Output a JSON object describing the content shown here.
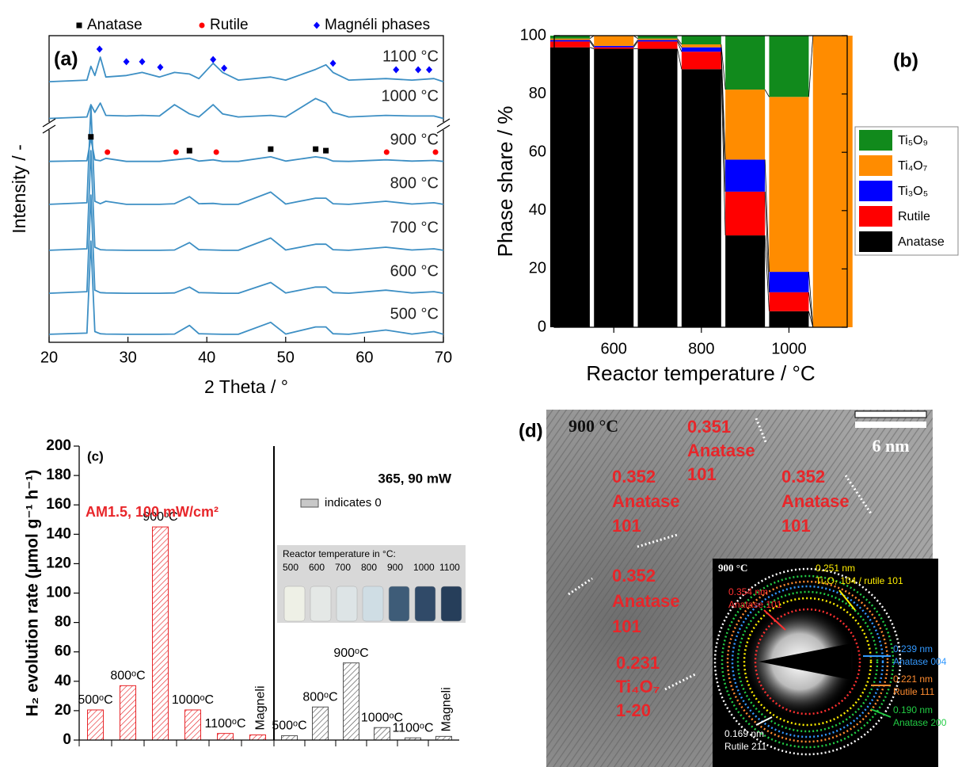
{
  "chart_data": [
    {
      "type": "line",
      "label": "(a)",
      "xlabel": "2 Theta / °",
      "ylabel": "Intensity / -",
      "xlim": [
        20,
        70
      ],
      "xticks": [
        20,
        30,
        40,
        50,
        60,
        70
      ],
      "ylim": [
        0,
        10
      ],
      "x": [
        20,
        24.8,
        25.3,
        25.8,
        26.5,
        27.2,
        29.8,
        31.8,
        34,
        35.9,
        37.8,
        39,
        40.8,
        42,
        44,
        48.1,
        50,
        53.8,
        55.1,
        56,
        58,
        62.7,
        66,
        68.8,
        70
      ],
      "series": [
        {
          "name": "500 °C",
          "color": "#3d8fc4",
          "values": [
            0.26,
            0.3,
            3.3,
            0.35,
            0.28,
            0.27,
            0.26,
            0.26,
            0.26,
            0.27,
            0.55,
            0.28,
            0.27,
            0.26,
            0.26,
            0.65,
            0.27,
            0.5,
            0.5,
            0.28,
            0.26,
            0.4,
            0.27,
            0.35,
            0.26
          ]
        },
        {
          "name": "600 °C",
          "color": "#3d8fc4",
          "values": [
            1.6,
            1.65,
            4.8,
            1.7,
            1.62,
            1.61,
            1.6,
            1.6,
            1.6,
            1.61,
            1.8,
            1.62,
            1.61,
            1.6,
            1.6,
            1.95,
            1.61,
            1.8,
            1.8,
            1.62,
            1.6,
            1.7,
            1.61,
            1.65,
            1.6
          ]
        },
        {
          "name": "700 °C",
          "color": "#3d8fc4",
          "values": [
            3.0,
            3.05,
            6.25,
            3.1,
            3.02,
            3.01,
            3.0,
            3.0,
            3.0,
            3.01,
            3.25,
            3.02,
            3.01,
            3.0,
            3.0,
            3.4,
            3.01,
            3.2,
            3.2,
            3.02,
            3.0,
            3.1,
            3.01,
            3.05,
            3.0
          ]
        },
        {
          "name": "800 °C",
          "color": "#3d8fc4",
          "values": [
            4.5,
            4.55,
            7.7,
            4.6,
            4.52,
            4.6,
            4.5,
            4.5,
            4.5,
            4.52,
            4.75,
            4.52,
            4.53,
            4.5,
            4.5,
            4.9,
            4.51,
            4.7,
            4.7,
            4.52,
            4.5,
            4.6,
            4.51,
            4.55,
            4.5
          ]
        },
        {
          "name": "900 °C",
          "color": "#3d8fc4",
          "values": [
            5.9,
            5.92,
            6.65,
            5.95,
            5.92,
            6.0,
            5.9,
            5.9,
            5.9,
            5.95,
            6.0,
            5.91,
            5.95,
            5.9,
            5.9,
            6.05,
            5.91,
            6.05,
            6.0,
            5.91,
            5.9,
            5.95,
            5.91,
            5.93,
            5.9
          ]
        },
        {
          "name": "1000 °C",
          "color": "#3d8fc4",
          "values": [
            7.3,
            7.35,
            7.75,
            7.5,
            7.8,
            7.4,
            7.38,
            7.4,
            7.38,
            7.75,
            7.45,
            7.35,
            7.75,
            7.45,
            7.35,
            7.4,
            7.35,
            7.95,
            7.8,
            7.5,
            7.35,
            7.4,
            7.38,
            7.38,
            7.3
          ]
        },
        {
          "name": "1100 °C",
          "color": "#3d8fc4",
          "values": [
            8.5,
            8.55,
            9.0,
            8.7,
            9.3,
            8.65,
            8.7,
            8.8,
            8.65,
            8.8,
            8.75,
            8.6,
            9.1,
            8.8,
            8.55,
            8.65,
            8.55,
            8.9,
            9.05,
            8.8,
            8.55,
            8.6,
            8.55,
            8.6,
            8.5
          ]
        }
      ],
      "markers": [
        {
          "name": "Anatase",
          "color": "#000000",
          "shape": "square",
          "x": [
            25.3,
            37.8,
            48.1,
            53.8,
            55.1
          ],
          "y": [
            6.7,
            6.25,
            6.3,
            6.3,
            6.25
          ]
        },
        {
          "name": "Rutile",
          "color": "#ff0000",
          "shape": "circle",
          "x": [
            27.4,
            36.1,
            41.2,
            62.8,
            69
          ],
          "y": [
            6.2,
            6.2,
            6.2,
            6.2,
            6.2
          ]
        },
        {
          "name": "Magnéli phases",
          "color": "#0000ff",
          "shape": "diamond",
          "x": [
            26.4,
            29.8,
            31.8,
            34.1,
            40.8,
            42.2,
            56,
            64,
            66.8,
            68.2
          ],
          "y": [
            9.56,
            9.15,
            9.15,
            8.97,
            9.22,
            8.94,
            9.1,
            8.89,
            8.89,
            8.89
          ]
        }
      ]
    },
    {
      "type": "bar",
      "stacked": true,
      "label": "(b)",
      "xlabel": "Reactor temperature / °C",
      "ylabel": "Phase share / %",
      "x": [
        500,
        600,
        700,
        800,
        900,
        1000,
        1100
      ],
      "xlim": [
        464,
        1133
      ],
      "xticks": [
        600,
        800,
        1000
      ],
      "ylim": [
        0,
        100
      ],
      "yticks": [
        0,
        20,
        40,
        60,
        80,
        100
      ],
      "legend": "right",
      "series": [
        {
          "name": "Anatase",
          "color": "#000000",
          "values": [
            96,
            95.5,
            95.5,
            88.5,
            31.5,
            5.5,
            0
          ]
        },
        {
          "name": "Rutile",
          "color": "#ff0000",
          "values": [
            2,
            0.5,
            2.5,
            6,
            15,
            6.5,
            0
          ]
        },
        {
          "name": "Ti₃O₅",
          "color": "#0000ff",
          "values": [
            0.5,
            0.5,
            0.5,
            1.5,
            11,
            7,
            0
          ]
        },
        {
          "name": "Ti₄O₇",
          "color": "#ff8c00",
          "values": [
            0.5,
            3.5,
            0.5,
            1,
            24,
            60,
            100
          ]
        },
        {
          "name": "Ti₅O₉",
          "color": "#118a1c",
          "values": [
            1,
            0,
            1,
            3,
            18.5,
            21,
            0
          ]
        }
      ]
    },
    {
      "type": "bar",
      "stacked": false,
      "label": "(c)",
      "ylabel": "H₂ evolution rate (μmol g⁻¹ h⁻¹)",
      "categories": [
        "500ᵒC",
        "800ᵒC",
        "900ᵒC",
        "1000ᵒC",
        "1100ᵒC",
        "Magneli"
      ],
      "ylim": [
        0,
        200
      ],
      "yticks": [
        0,
        20,
        40,
        60,
        80,
        100,
        120,
        140,
        160,
        180,
        200
      ],
      "series": [
        {
          "name": "AM1.5, 100 mW/cm²",
          "color": "#e8262a",
          "values": [
            20.5,
            37,
            145,
            20.5,
            4.5,
            3.5
          ]
        },
        {
          "name": "365, 90 mW",
          "color": "#555555",
          "values": [
            3,
            22.5,
            52.5,
            8.5,
            1.5,
            2.5
          ]
        }
      ],
      "note": "indicates 0",
      "inset": {
        "title": "Reactor temperature in °C:",
        "labels": [
          "500",
          "600",
          "700",
          "800",
          "900",
          "1000",
          "1100"
        ]
      }
    }
  ],
  "tem": {
    "label": "(d)",
    "temperature": "900 °C",
    "scale": "6 nm",
    "fringes": [
      [
        "0.351",
        "Anatase",
        "101"
      ],
      [
        "0.352",
        "Anatase",
        "101"
      ],
      [
        "0.352",
        "Anatase",
        "101"
      ],
      [
        "0.352",
        "Anatase",
        "101"
      ],
      [
        "0.231",
        "Ti₄O₇",
        "1-20"
      ]
    ],
    "saed": {
      "temperature": "900 °C",
      "rings": [
        [
          "0.251 nm",
          "Ti₄O₇ 104 / rutile 101"
        ],
        [
          "0.354 nm",
          "Anatase 101"
        ],
        [
          "0.239 nm",
          "Anatase 004"
        ],
        [
          "0.221 nm",
          "Rutile 111"
        ],
        [
          "0.190 nm",
          "Anatase 200"
        ],
        [
          "0.169 nm",
          "Rutile 211"
        ]
      ]
    }
  }
}
